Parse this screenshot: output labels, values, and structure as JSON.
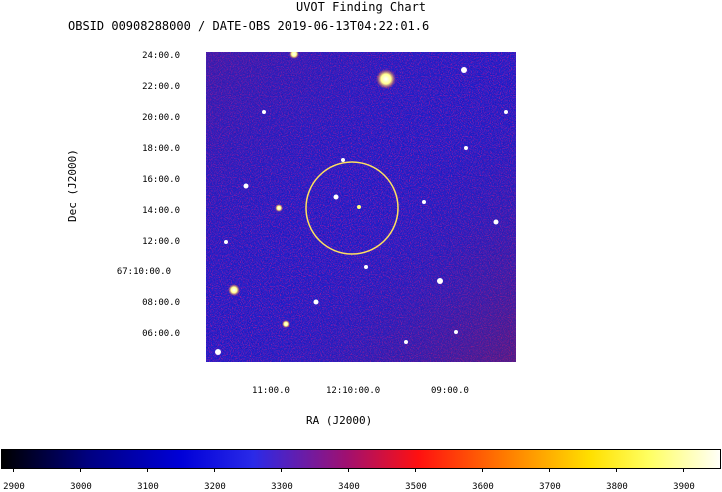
{
  "title": "UVOT Finding Chart",
  "subtitle": "OBSID 00908288000 / DATE-OBS 2019-06-13T04:22:01.6",
  "y_axis": {
    "label": "Dec (J2000)",
    "ticks": [
      "24:00.0",
      "22:00.0",
      "20:00.0",
      "18:00.0",
      "16:00.0",
      "14:00.0",
      "12:00.0",
      "67:10:00.0",
      "08:00.0",
      "06:00.0"
    ]
  },
  "x_axis": {
    "label": "RA (J2000)",
    "ticks": [
      "11:00.0",
      "12:10:00.0",
      "09:00.0"
    ]
  },
  "colorbar": {
    "ticks": [
      "2900",
      "3000",
      "3100",
      "3200",
      "3300",
      "3400",
      "3500",
      "3600",
      "3700",
      "3800",
      "3900"
    ]
  },
  "colors": {
    "background_field": "#2222c8",
    "noise_red": "#e01818",
    "noise_dark": "#000088",
    "star": "#ffffff",
    "circle": "#ffe060"
  }
}
